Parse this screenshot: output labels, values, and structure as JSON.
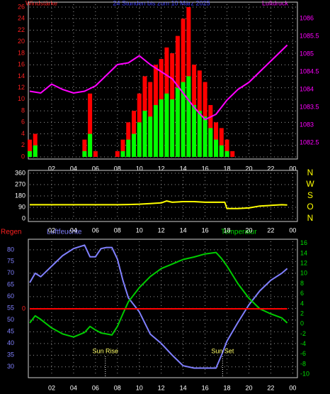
{
  "chart_data": [
    {
      "type": "bar",
      "title": "24 Stunden bis zum 10 März 2025",
      "y_label": "Windstärke",
      "y2_label": "Luftdruck",
      "x": [
        0,
        0.5,
        1,
        1.5,
        2,
        2.5,
        3,
        3.5,
        4,
        4.5,
        5,
        5.5,
        6,
        6.5,
        7,
        7.5,
        8,
        8.5,
        9,
        9.5,
        10,
        10.5,
        11,
        11.5,
        12,
        12.5,
        13,
        13.5,
        14,
        14.5,
        15,
        15.5,
        16,
        16.5,
        17,
        17.5,
        18,
        18.5,
        19,
        19.5,
        20,
        20.5,
        21,
        21.5,
        22,
        22.5,
        23,
        23.5
      ],
      "xlim": [
        0,
        24.3
      ],
      "xticks": [
        {
          "value": 2,
          "label": "02"
        },
        {
          "value": 4,
          "label": "04"
        },
        {
          "value": 6,
          "label": "06"
        },
        {
          "value": 8,
          "label": "08"
        },
        10,
        12,
        14,
        16,
        18,
        20,
        22,
        {
          "value": 24,
          "label": "00"
        }
      ],
      "ylim": [
        0,
        26.5
      ],
      "yticks": [
        0,
        2,
        4,
        6,
        8,
        10,
        12,
        14,
        16,
        18,
        20,
        22,
        24,
        26
      ],
      "y2lim": [
        1082.1,
        1086.4
      ],
      "y2ticks": [
        1082.5,
        1083,
        1083.5,
        1084,
        1084.5,
        1085,
        1085.5,
        1086
      ],
      "grid": true,
      "series": [
        {
          "type": "bar",
          "color": "#ff0000",
          "values": [
            3,
            4,
            0,
            0,
            0,
            0,
            0,
            0,
            0,
            0,
            3,
            11,
            1,
            0,
            0,
            0,
            1,
            3,
            6,
            8,
            11,
            14,
            13,
            16,
            17,
            19,
            18,
            21,
            24,
            26,
            16,
            15,
            13,
            9,
            6,
            5,
            3,
            1,
            0,
            0,
            0,
            0,
            0,
            0,
            0,
            0,
            0,
            0
          ]
        },
        {
          "type": "bar",
          "color": "#00ff00",
          "values": [
            1,
            2,
            0,
            0,
            0,
            0,
            0,
            0,
            0,
            0,
            1,
            4,
            0,
            0,
            0,
            0,
            0,
            1,
            3,
            4,
            6,
            8,
            7,
            9,
            10,
            11,
            10,
            12,
            13,
            14,
            9,
            8,
            7,
            5,
            3,
            2,
            1,
            0,
            0,
            0,
            0,
            0,
            0,
            0,
            0,
            0,
            0,
            0
          ]
        },
        {
          "type": "line",
          "axis": "y2",
          "color": "#ff00ff",
          "x": [
            0,
            1,
            2,
            3,
            4,
            5,
            6,
            7,
            8,
            9,
            10,
            11,
            12,
            13,
            14,
            15,
            16,
            17,
            18,
            19,
            20,
            21,
            22,
            23,
            23.5
          ],
          "values": [
            1083.95,
            1083.9,
            1084.15,
            1084.0,
            1083.9,
            1083.95,
            1084.1,
            1084.4,
            1084.7,
            1084.75,
            1084.95,
            1084.7,
            1084.5,
            1084.3,
            1083.9,
            1083.5,
            1083.15,
            1083.3,
            1083.7,
            1084.0,
            1084.2,
            1084.5,
            1084.8,
            1085.1,
            1085.25
          ]
        }
      ]
    },
    {
      "type": "line",
      "x": [
        0,
        1,
        2,
        3,
        4,
        5,
        6,
        7,
        8,
        9,
        10,
        11,
        12,
        12.5,
        13,
        14,
        15,
        16,
        17,
        17.8,
        18,
        19,
        20,
        21,
        22,
        23,
        23.5
      ],
      "xlim": [
        0,
        24.3
      ],
      "xticks": [
        {
          "value": 2,
          "label": "02"
        },
        {
          "value": 4,
          "label": "04"
        },
        {
          "value": 6,
          "label": "06"
        },
        {
          "value": 8,
          "label": "08"
        },
        10,
        12,
        14,
        16,
        18,
        20,
        22,
        {
          "value": 24,
          "label": "00"
        }
      ],
      "ylim": [
        0,
        360
      ],
      "yticks": [
        0,
        90,
        180,
        270,
        360
      ],
      "y2lim": [
        0,
        360
      ],
      "y2ticks": [
        {
          "value": 360,
          "label": "N"
        },
        {
          "value": 270,
          "label": "W"
        },
        {
          "value": 180,
          "label": "S"
        },
        {
          "value": 90,
          "label": "O"
        },
        {
          "value": 0,
          "label": "N"
        }
      ],
      "grid": true,
      "series": [
        {
          "color": "#ffff00",
          "values": [
            110,
            110,
            110,
            110,
            110,
            110,
            110,
            110,
            110,
            112,
            115,
            120,
            125,
            140,
            130,
            135,
            135,
            130,
            130,
            130,
            80,
            80,
            85,
            100,
            105,
            110,
            108
          ]
        }
      ]
    },
    {
      "type": "line",
      "y_label": "Luftfeuchte",
      "y2_label": "Temperatur",
      "y3_label": "Regen",
      "x": [
        0,
        0.5,
        1,
        2,
        3,
        4,
        5,
        5.5,
        6,
        6.5,
        7,
        7.5,
        8,
        8.5,
        9,
        10,
        11,
        12,
        13,
        14,
        15,
        16,
        17,
        17.5,
        18,
        19,
        20,
        21,
        22,
        23,
        23.5
      ],
      "xlim": [
        0,
        24.3
      ],
      "xticks": [
        {
          "value": 2,
          "label": "02"
        },
        {
          "value": 4,
          "label": "04"
        },
        {
          "value": 6,
          "label": "06"
        },
        {
          "value": 8,
          "label": "08"
        },
        10,
        12,
        14,
        16,
        18,
        20,
        22,
        {
          "value": 24,
          "label": "00"
        }
      ],
      "ylim": [
        26,
        83.6
      ],
      "yticks": [
        30,
        35,
        40,
        45,
        50,
        55,
        60,
        65,
        70,
        75,
        80
      ],
      "y2lim": [
        -10.4,
        16.4
      ],
      "y2ticks": [
        -10,
        -8,
        -6,
        -4,
        -2,
        0,
        2,
        4,
        6,
        8,
        10,
        12,
        14,
        16
      ],
      "y3lim": [
        -1,
        1
      ],
      "y3ticks": [
        0
      ],
      "grid": true,
      "series": [
        {
          "color": "#8080ff",
          "values": [
            66,
            70,
            68.5,
            73,
            77.5,
            80.5,
            82,
            77,
            77,
            80.5,
            81,
            81,
            76,
            67,
            59.5,
            53.5,
            44,
            40,
            35,
            30.5,
            29.5,
            29.5,
            29.5,
            35,
            41,
            49,
            56.5,
            62.5,
            67,
            70,
            72
          ]
        },
        {
          "axis": "y2",
          "color": "#00cc00",
          "values": [
            0.2,
            1.6,
            0.9,
            -0.8,
            -2,
            -2.6,
            -1.7,
            -0.5,
            -1.2,
            -1.8,
            -2,
            -2.2,
            -0.5,
            2,
            4.4,
            7.2,
            9.4,
            11,
            11.9,
            12.8,
            13.3,
            13.9,
            14.2,
            13,
            11.5,
            8,
            5.1,
            3,
            2,
            1.2,
            0.2
          ]
        },
        {
          "axis": "y3",
          "color": "#ff0000",
          "x": [
            0,
            23.5
          ],
          "values": [
            0,
            0
          ]
        }
      ],
      "annotations": [
        {
          "text": "Sun Rise",
          "x": 6.9
        },
        {
          "text": "Sun Set",
          "x": 17.6
        }
      ]
    }
  ]
}
